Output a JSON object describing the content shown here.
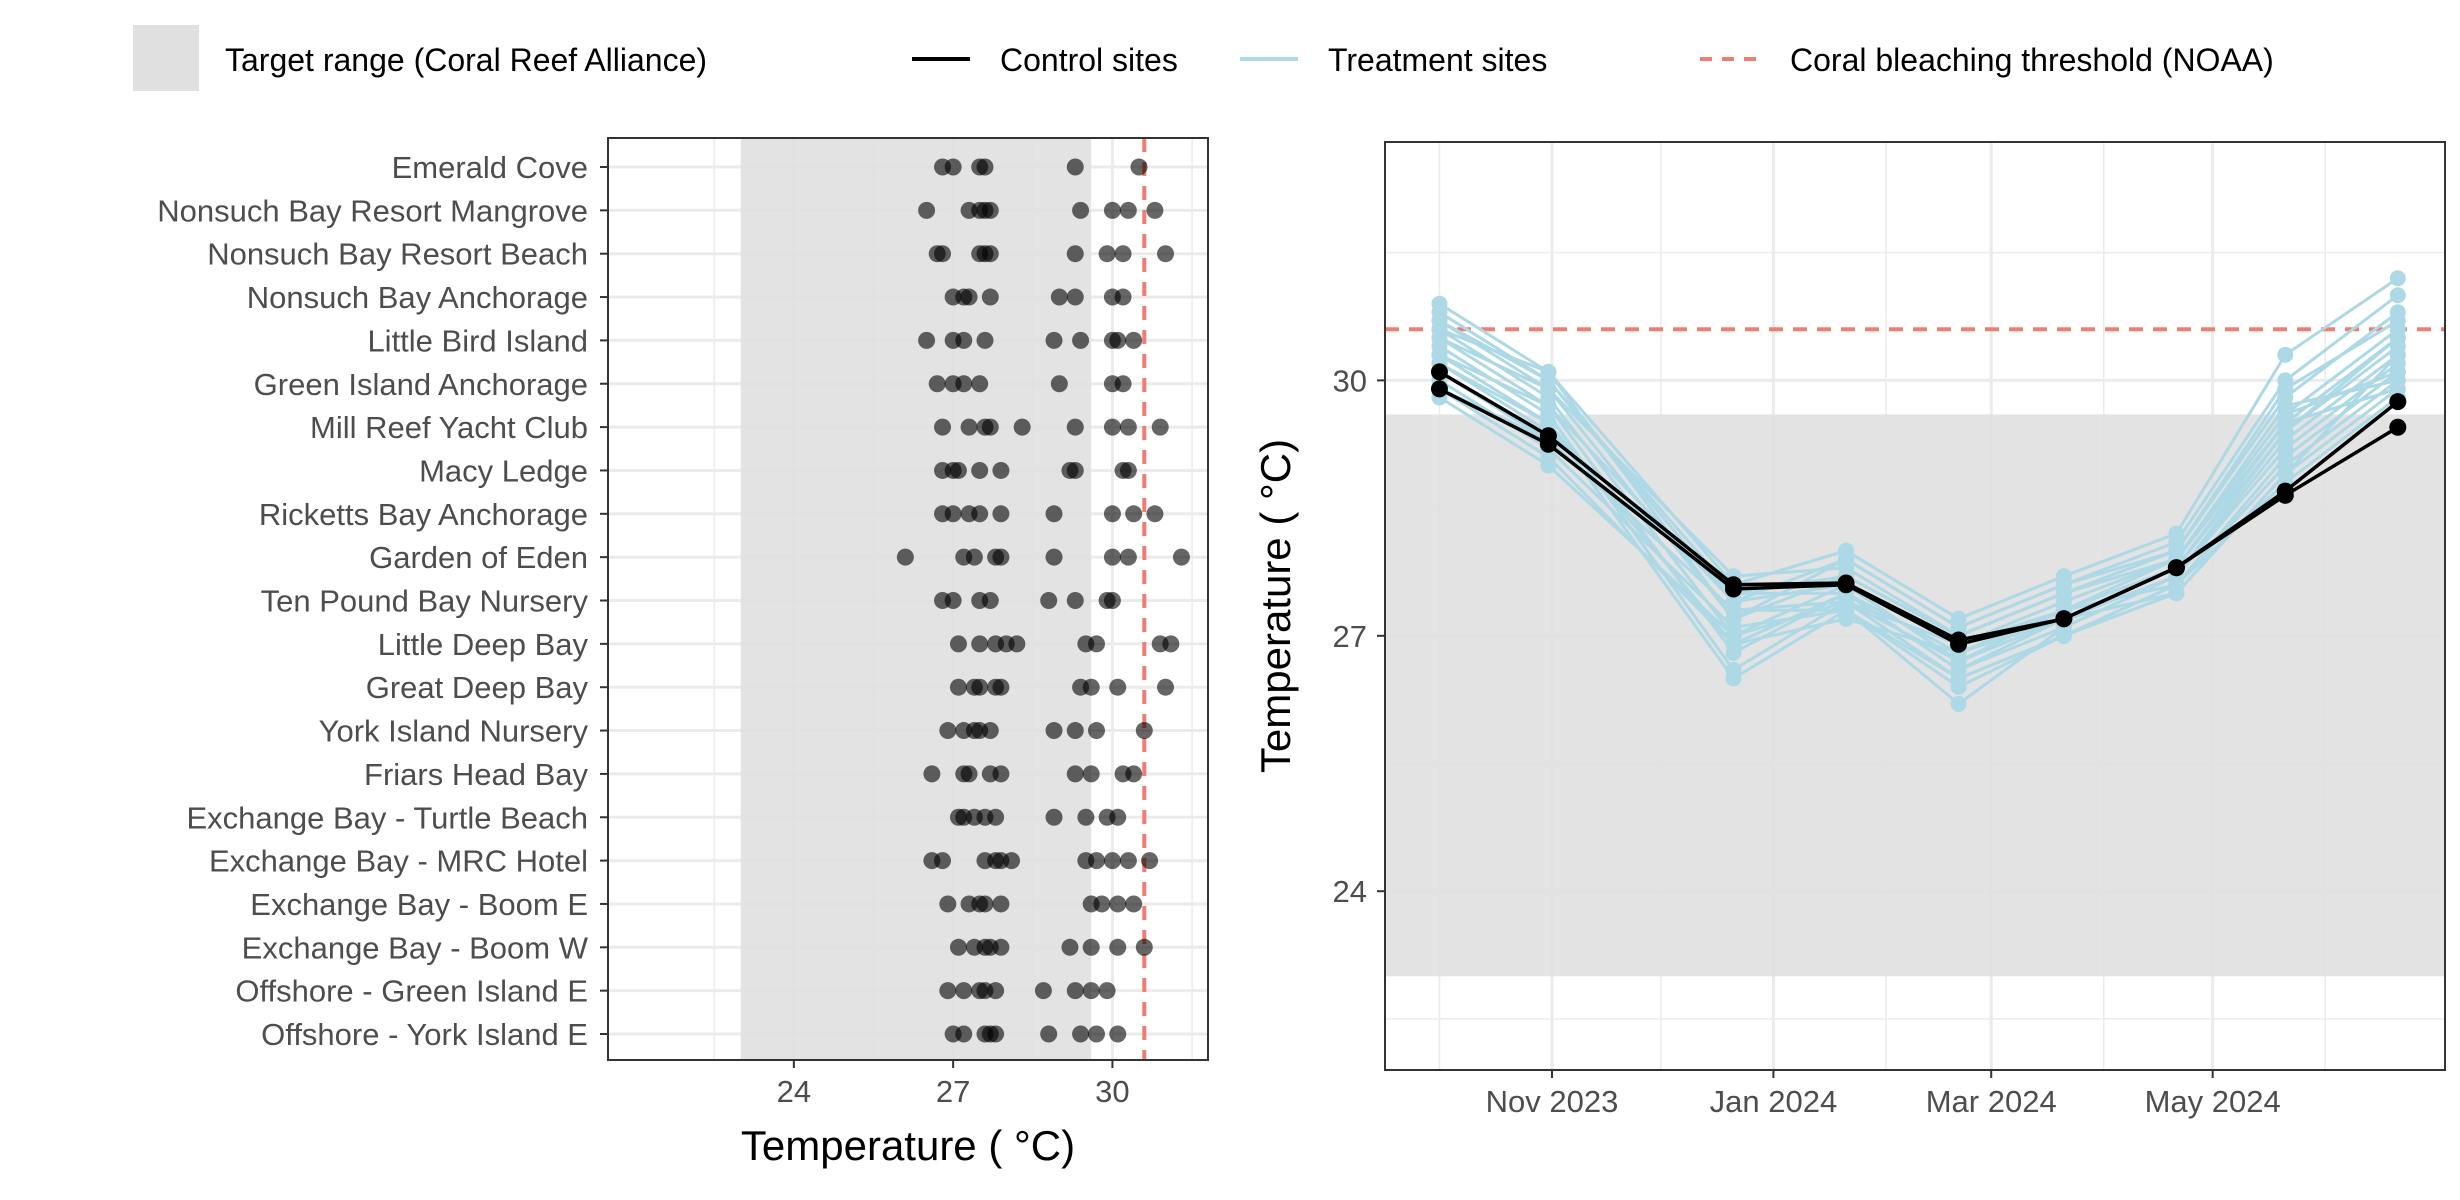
{
  "legend": {
    "target_range": "Target range (Coral Reef Alliance)",
    "control": "Control sites",
    "treatment": "Treatment sites",
    "threshold": "Coral bleaching threshold (NOAA)"
  },
  "colors": {
    "target_band": "#e0e0e0",
    "control": "#000000",
    "treatment": "#add8e6",
    "threshold": "#f07d6f",
    "grid": "#ebebeb",
    "panel_border": "#333333"
  },
  "chart_data": [
    {
      "type": "scatter",
      "xlabel": "Temperature ( °C)",
      "xlim": [
        20.5,
        31.8
      ],
      "xticks": [
        24,
        27,
        30
      ],
      "xtick_labels": [
        "24",
        "27",
        "30"
      ],
      "target_range": [
        23.0,
        29.6
      ],
      "threshold": 30.6,
      "sites": [
        {
          "name": "Emerald Cove",
          "values": [
            26.8,
            27.0,
            27.5,
            27.6,
            29.3,
            30.5
          ]
        },
        {
          "name": "Nonsuch Bay Resort Mangrove",
          "values": [
            26.5,
            27.3,
            27.5,
            27.6,
            27.7,
            29.4,
            30.0,
            30.3,
            30.8
          ]
        },
        {
          "name": "Nonsuch Bay Resort Beach",
          "values": [
            26.7,
            26.8,
            27.5,
            27.6,
            27.7,
            29.3,
            29.9,
            30.2,
            31.0
          ]
        },
        {
          "name": "Nonsuch Bay Anchorage",
          "values": [
            27.0,
            27.2,
            27.3,
            27.7,
            29.0,
            29.3,
            30.0,
            30.2
          ]
        },
        {
          "name": "Little Bird Island",
          "values": [
            26.5,
            27.0,
            27.2,
            27.6,
            28.9,
            29.4,
            30.0,
            30.1,
            30.4
          ]
        },
        {
          "name": "Green Island Anchorage",
          "values": [
            26.7,
            27.0,
            27.2,
            27.5,
            29.0,
            30.0,
            30.2
          ]
        },
        {
          "name": "Mill Reef Yacht Club",
          "values": [
            26.8,
            27.3,
            27.6,
            27.7,
            28.3,
            29.3,
            30.0,
            30.3,
            30.9
          ]
        },
        {
          "name": "Macy Ledge",
          "values": [
            26.8,
            27.0,
            27.1,
            27.5,
            27.9,
            29.2,
            29.3,
            30.2,
            30.3
          ]
        },
        {
          "name": "Ricketts Bay Anchorage",
          "values": [
            26.8,
            27.0,
            27.3,
            27.5,
            27.9,
            28.9,
            30.0,
            30.4,
            30.8
          ]
        },
        {
          "name": "Garden of Eden",
          "values": [
            26.1,
            27.2,
            27.4,
            27.8,
            27.9,
            28.9,
            30.0,
            30.3,
            31.3
          ]
        },
        {
          "name": "Ten Pound Bay Nursery",
          "values": [
            26.8,
            27.0,
            27.5,
            27.7,
            28.8,
            29.3,
            29.9,
            30.0
          ]
        },
        {
          "name": "Little Deep Bay",
          "values": [
            27.1,
            27.5,
            27.8,
            28.0,
            28.2,
            29.5,
            29.7,
            30.9,
            31.1
          ]
        },
        {
          "name": "Great Deep Bay",
          "values": [
            27.1,
            27.4,
            27.5,
            27.8,
            27.9,
            29.4,
            29.6,
            30.1,
            31.0
          ]
        },
        {
          "name": "York Island Nursery",
          "values": [
            26.9,
            27.2,
            27.4,
            27.5,
            27.7,
            28.9,
            29.3,
            29.7,
            30.6
          ]
        },
        {
          "name": "Friars Head Bay",
          "values": [
            26.6,
            27.2,
            27.3,
            27.7,
            27.9,
            29.3,
            29.6,
            30.2,
            30.4
          ]
        },
        {
          "name": "Exchange Bay - Turtle Beach",
          "values": [
            27.1,
            27.2,
            27.4,
            27.6,
            27.8,
            28.9,
            29.5,
            29.9,
            30.1
          ]
        },
        {
          "name": "Exchange Bay - MRC Hotel",
          "values": [
            26.6,
            26.8,
            27.6,
            27.8,
            27.9,
            28.1,
            29.5,
            29.7,
            30.0,
            30.3,
            30.7
          ]
        },
        {
          "name": "Exchange Bay - Boom E",
          "values": [
            26.9,
            27.3,
            27.5,
            27.6,
            27.9,
            29.6,
            29.8,
            30.1,
            30.4
          ]
        },
        {
          "name": "Exchange Bay - Boom W",
          "values": [
            27.1,
            27.4,
            27.6,
            27.7,
            27.9,
            29.2,
            29.6,
            30.1,
            30.6
          ]
        },
        {
          "name": "Offshore - Green Island E",
          "values": [
            26.9,
            27.2,
            27.5,
            27.6,
            27.8,
            28.7,
            29.3,
            29.6,
            29.9
          ]
        },
        {
          "name": "Offshore - York Island E",
          "values": [
            27.0,
            27.2,
            27.6,
            27.7,
            27.8,
            28.8,
            29.4,
            29.7,
            30.1
          ]
        }
      ]
    },
    {
      "type": "line",
      "ylabel": "Temperature ( °C)",
      "xlim": [
        "2023-09-16",
        "2024-07-04"
      ],
      "ylim": [
        21.9,
        32.8
      ],
      "yticks": [
        24,
        27,
        30
      ],
      "ytick_labels": [
        "24",
        "27",
        "30"
      ],
      "xticks": [
        "2023-11-01",
        "2024-01-01",
        "2024-03-01",
        "2024-05-01"
      ],
      "xtick_labels": [
        "Nov 2023",
        "Jan 2024",
        "Mar 2024",
        "May 2024"
      ],
      "target_range": [
        23.0,
        29.6
      ],
      "threshold": 30.6,
      "x": [
        "2023-10-01",
        "2023-10-31",
        "2023-12-21",
        "2024-01-21",
        "2024-02-21",
        "2024-03-21",
        "2024-04-21",
        "2024-05-21",
        "2024-06-21"
      ],
      "control_series": [
        {
          "values": [
            30.1,
            29.35,
            27.6,
            27.62,
            26.95,
            27.2,
            27.8,
            28.7,
            29.75
          ]
        },
        {
          "values": [
            29.9,
            29.25,
            27.55,
            27.6,
            26.9,
            27.2,
            27.8,
            28.65,
            29.45
          ]
        }
      ],
      "treatment_series": [
        {
          "values": [
            30.9,
            30.1,
            27.6,
            28.0,
            27.2,
            27.7,
            28.2,
            30.3,
            31.2
          ]
        },
        {
          "values": [
            30.8,
            30.0,
            27.4,
            27.9,
            27.1,
            27.6,
            28.1,
            30.0,
            31.0
          ]
        },
        {
          "values": [
            30.7,
            29.9,
            27.2,
            27.7,
            27.0,
            27.5,
            28.0,
            29.8,
            30.8
          ]
        },
        {
          "values": [
            30.6,
            29.8,
            27.0,
            27.6,
            26.9,
            27.4,
            27.9,
            29.6,
            30.6
          ]
        },
        {
          "values": [
            30.5,
            29.7,
            26.8,
            27.5,
            26.8,
            27.3,
            27.9,
            29.5,
            30.5
          ]
        },
        {
          "values": [
            30.4,
            29.6,
            26.6,
            27.4,
            26.7,
            27.2,
            27.8,
            29.4,
            30.4
          ]
        },
        {
          "values": [
            30.3,
            29.5,
            26.5,
            27.3,
            26.2,
            27.1,
            27.7,
            29.3,
            30.3
          ]
        },
        {
          "values": [
            30.2,
            29.4,
            27.5,
            27.5,
            26.6,
            27.1,
            27.7,
            29.2,
            30.2
          ]
        },
        {
          "values": [
            30.1,
            29.3,
            27.3,
            27.4,
            26.5,
            27.0,
            27.6,
            29.1,
            30.1
          ]
        },
        {
          "values": [
            30.0,
            29.2,
            27.1,
            27.3,
            26.4,
            27.0,
            27.6,
            29.0,
            30.0
          ]
        },
        {
          "values": [
            29.9,
            29.1,
            26.9,
            27.2,
            26.8,
            27.2,
            27.5,
            28.9,
            29.9
          ]
        },
        {
          "values": [
            29.8,
            29.0,
            27.0,
            27.4,
            26.9,
            27.3,
            27.6,
            28.8,
            29.8
          ]
        },
        {
          "values": [
            30.5,
            29.9,
            27.7,
            27.8,
            27.0,
            27.5,
            27.9,
            29.7,
            30.0
          ]
        },
        {
          "values": [
            30.3,
            29.7,
            27.4,
            27.6,
            26.7,
            27.3,
            27.8,
            29.5,
            29.9
          ]
        },
        {
          "values": [
            30.6,
            30.1,
            27.2,
            27.9,
            27.1,
            27.6,
            28.0,
            29.9,
            30.7
          ]
        },
        {
          "values": [
            30.2,
            29.5,
            26.9,
            27.5,
            26.6,
            27.2,
            27.7,
            29.4,
            30.5
          ]
        },
        {
          "values": [
            29.9,
            29.3,
            27.3,
            27.3,
            26.5,
            27.0,
            27.5,
            28.9,
            30.3
          ]
        },
        {
          "values": [
            30.7,
            30.0,
            27.5,
            27.7,
            27.0,
            27.5,
            27.9,
            29.6,
            30.1
          ]
        }
      ]
    }
  ]
}
